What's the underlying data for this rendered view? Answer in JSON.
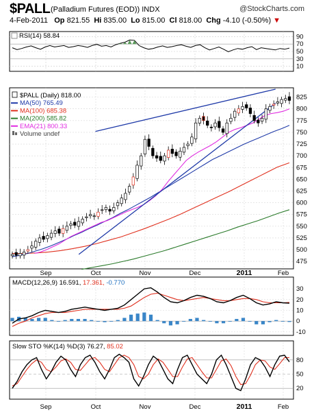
{
  "header": {
    "symbol": "$PALL",
    "description": "(Palladium Futures (EOD)) INDX",
    "brand": "@StockCharts.com",
    "date": "4-Feb-2011",
    "op_label": "Op",
    "op": "821.55",
    "hi_label": "Hi",
    "hi": "835.00",
    "lo_label": "Lo",
    "lo": "815.00",
    "cl_label": "Cl",
    "cl": "818.00",
    "chg_label": "Chg",
    "chg": "-4.10 (-0.50%)"
  },
  "x_axis": {
    "labels": [
      "Sep",
      "Oct",
      "Nov",
      "Dec",
      "2011",
      "Feb"
    ]
  },
  "rsi_panel": {
    "legend": "RSI(14) 58.84",
    "ticks": [
      "90",
      "70",
      "50",
      "30",
      "10"
    ]
  },
  "price_panel": {
    "legend": [
      {
        "text": "$PALL (Daily) 818.00",
        "color": "#000000"
      },
      {
        "text": "MA(50) 765.49",
        "color": "#1f3aa8"
      },
      {
        "text": "MA(100) 685.38",
        "color": "#e0301e"
      },
      {
        "text": "MA(200) 585.82",
        "color": "#2a7a2a"
      },
      {
        "text": "EMA(21) 800.33",
        "color": "#e02be0"
      },
      {
        "text": "Volume undef",
        "color": "#444444"
      }
    ],
    "ticks": [
      "825",
      "800",
      "775",
      "750",
      "725",
      "700",
      "675",
      "650",
      "625",
      "600",
      "575",
      "550",
      "525",
      "500",
      "475"
    ]
  },
  "macd_panel": {
    "legend_main": "MACD(12,26,9) 16.591,",
    "legend_signal": "17.361,",
    "legend_hist": "-0.770",
    "ticks": [
      "30",
      "20",
      "10",
      "0",
      "-10"
    ]
  },
  "sto_panel": {
    "legend_main": "Slow STO %K(14) %D(3) 76.27,",
    "legend_d": "85.02",
    "ticks": [
      "80",
      "50",
      "20"
    ]
  },
  "chart_data": {
    "type": "line",
    "price": {
      "title": "$PALL (Daily) 818.00",
      "ylim": [
        462,
        842
      ],
      "close": [
        490,
        488,
        492,
        495,
        500,
        508,
        518,
        525,
        522,
        530,
        535,
        540,
        535,
        545,
        550,
        555,
        552,
        560,
        565,
        570,
        575,
        572,
        580,
        585,
        590,
        582,
        590,
        600,
        610,
        620,
        635,
        655,
        680,
        700,
        735,
        720,
        700,
        695,
        690,
        700,
        712,
        705,
        700,
        710,
        718,
        725,
        740,
        770,
        780,
        775,
        765,
        760,
        770,
        760,
        750,
        770,
        780,
        795,
        800,
        805,
        802,
        790,
        775,
        770,
        780,
        800,
        805,
        810,
        815,
        820,
        822,
        818
      ],
      "ma50": [
        485,
        488,
        492,
        497,
        502,
        508,
        515,
        522,
        530,
        537,
        545,
        552,
        560,
        568,
        577,
        585,
        594,
        603,
        612,
        622,
        632,
        642,
        652,
        662,
        672,
        682,
        692,
        700,
        708,
        716,
        724,
        731,
        738,
        745,
        752,
        758,
        765
      ],
      "ma100": [
        492,
        492,
        493,
        495,
        498,
        502,
        507,
        513,
        520,
        527,
        536,
        545,
        555,
        565,
        576,
        588,
        600,
        612,
        624,
        637,
        650,
        663,
        676,
        685
      ],
      "ma200": [
        458,
        462,
        466,
        470,
        475,
        480,
        486,
        492,
        498,
        505,
        512,
        519,
        526,
        533,
        540,
        548,
        555,
        562,
        570,
        578,
        585
      ],
      "ema21": [
        492,
        495,
        500,
        506,
        512,
        520,
        528,
        534,
        540,
        546,
        552,
        558,
        562,
        568,
        574,
        580,
        585,
        590,
        596,
        605,
        615,
        628,
        645,
        660,
        675,
        690,
        700,
        708,
        715,
        722,
        730,
        740,
        750,
        756,
        760,
        765,
        770,
        778,
        786,
        790,
        792,
        795,
        800
      ]
    },
    "trend_channel": {
      "upper": [
        [
          30,
          752
        ],
        [
          95,
          842
        ]
      ],
      "lower": [
        [
          24,
          490
        ],
        [
          95,
          812
        ]
      ]
    },
    "rsi": {
      "ylim": [
        0,
        100
      ],
      "values": [
        60,
        55,
        58,
        62,
        65,
        60,
        56,
        62,
        66,
        62,
        64,
        66,
        61,
        63,
        66,
        64,
        61,
        66,
        69,
        64,
        66,
        62,
        68,
        72,
        75,
        81,
        80,
        66,
        60,
        56,
        58,
        62,
        65,
        61,
        63,
        66,
        68,
        64,
        61,
        66,
        68,
        60,
        54,
        58,
        62,
        56,
        49,
        54,
        58,
        56,
        60,
        63,
        55,
        60,
        58,
        56,
        54,
        58,
        56,
        59
      ]
    },
    "macd": {
      "ylim": [
        -12,
        32
      ],
      "macd": [
        -2,
        2,
        3,
        5,
        8,
        10,
        9,
        8,
        9,
        11,
        12,
        13,
        12,
        11,
        10,
        11,
        12,
        15,
        20,
        25,
        30,
        31,
        27,
        22,
        18,
        17,
        19,
        22,
        24,
        23,
        21,
        18,
        17,
        19,
        22,
        24,
        21,
        17,
        15,
        16,
        18,
        17,
        16.6
      ],
      "signal": [
        -5,
        -2,
        0,
        3,
        5,
        7,
        8,
        8,
        8,
        9,
        10,
        11,
        11,
        11,
        11,
        11,
        11,
        12,
        14,
        18,
        22,
        25,
        26,
        24,
        22,
        20,
        19,
        20,
        21,
        22,
        21,
        20,
        19,
        19,
        20,
        21,
        21,
        20,
        18,
        17,
        17,
        17,
        17.4
      ],
      "histogram": [
        3,
        4,
        3,
        2,
        3,
        3,
        1,
        0,
        1,
        2,
        2,
        2,
        1,
        0,
        -1,
        0,
        1,
        3,
        6,
        7,
        8,
        6,
        1,
        -2,
        -4,
        -3,
        0,
        2,
        3,
        1,
        0,
        -2,
        -2,
        0,
        2,
        3,
        0,
        -3,
        -3,
        -1,
        1,
        0,
        -0.8
      ]
    },
    "stochastic": {
      "ylim": [
        0,
        100
      ],
      "k": [
        20,
        35,
        55,
        70,
        80,
        85,
        60,
        40,
        55,
        75,
        88,
        80,
        60,
        45,
        70,
        85,
        90,
        75,
        55,
        40,
        60,
        85,
        92,
        85,
        75,
        40,
        25,
        45,
        70,
        88,
        80,
        60,
        40,
        30,
        60,
        85,
        90,
        70,
        50,
        40,
        30,
        50,
        80,
        90,
        70,
        45,
        20,
        15,
        40,
        70,
        85,
        80,
        65,
        45,
        70,
        88,
        90,
        76
      ],
      "d": [
        25,
        30,
        45,
        60,
        72,
        80,
        75,
        60,
        55,
        65,
        78,
        82,
        75,
        60,
        58,
        70,
        82,
        85,
        75,
        60,
        55,
        70,
        85,
        90,
        85,
        70,
        45,
        40,
        50,
        70,
        82,
        75,
        60,
        45,
        45,
        65,
        82,
        85,
        70,
        55,
        42,
        42,
        60,
        78,
        82,
        68,
        45,
        28,
        30,
        48,
        70,
        80,
        78,
        65,
        60,
        72,
        85,
        85
      ]
    }
  }
}
